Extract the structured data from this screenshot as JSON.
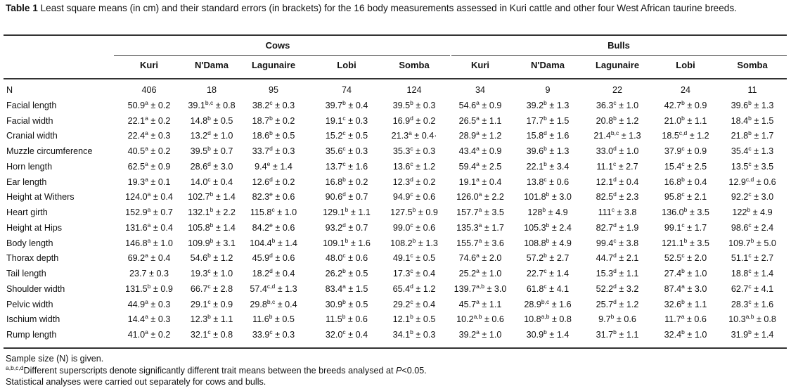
{
  "caption": {
    "label": "Table 1",
    "text": " Least square means (in cm) and their standard errors (in brackets) for the 16 body measurements assessed in Kuri cattle and other four West African taurine breeds."
  },
  "groups": [
    "Cows",
    "Bulls"
  ],
  "breeds": [
    "Kuri",
    "N'Dama",
    "Lagunaire",
    "Lobi",
    "Somba",
    "Kuri",
    "N'Dama",
    "Lagunaire",
    "Lobi",
    "Somba"
  ],
  "rows": [
    {
      "label": "N",
      "cells": [
        [
          "406",
          ""
        ],
        [
          "18",
          ""
        ],
        [
          "95",
          ""
        ],
        [
          "74",
          ""
        ],
        [
          "124",
          ""
        ],
        [
          "34",
          ""
        ],
        [
          "9",
          ""
        ],
        [
          "22",
          ""
        ],
        [
          "24",
          ""
        ],
        [
          "11",
          ""
        ]
      ]
    },
    {
      "label": "Facial length",
      "cells": [
        [
          "50.9",
          "a",
          " ± 0.2"
        ],
        [
          "39.1",
          "b,c",
          " ± 0.8"
        ],
        [
          "38.2",
          "c",
          " ± 0.3"
        ],
        [
          "39.7",
          "b",
          " ± 0.4"
        ],
        [
          "39.5",
          "b",
          " ± 0.3"
        ],
        [
          "54.6",
          "a",
          " ± 0.9"
        ],
        [
          "39.2",
          "b",
          " ± 1.3"
        ],
        [
          "36.3",
          "c",
          " ± 1.0"
        ],
        [
          "42.7",
          "b",
          " ± 0.9"
        ],
        [
          "39.6",
          "b",
          " ± 1.3"
        ]
      ]
    },
    {
      "label": "Facial width",
      "cells": [
        [
          "22.1",
          "a",
          " ± 0.2"
        ],
        [
          "14.8",
          "b",
          " ± 0.5"
        ],
        [
          "18.7",
          "b",
          " ± 0.2"
        ],
        [
          "19.1",
          "c",
          " ± 0.3"
        ],
        [
          "16.9",
          "d",
          " ± 0.2"
        ],
        [
          "26.5",
          "a",
          " ± 1.1"
        ],
        [
          "17.7",
          "b",
          " ± 1.5"
        ],
        [
          "20.8",
          "b",
          " ± 1.2"
        ],
        [
          "21.0",
          "b",
          " ± 1.1"
        ],
        [
          "18.4",
          "b",
          " ± 1.5"
        ]
      ]
    },
    {
      "label": "Cranial width",
      "cells": [
        [
          "22.4",
          "a",
          " ± 0.3"
        ],
        [
          "13.2",
          "d",
          " ± 1.0"
        ],
        [
          "18.6",
          "b",
          " ± 0.5"
        ],
        [
          "15.2",
          "c",
          " ± 0.5"
        ],
        [
          "21.3",
          "a",
          " ± 0.4·"
        ],
        [
          "28.9",
          "a",
          " ± 1.2"
        ],
        [
          "15.8",
          "d",
          " ± 1.6"
        ],
        [
          "21.4",
          "b,c",
          " ± 1.3"
        ],
        [
          "18.5",
          "c,d",
          " ± 1.2"
        ],
        [
          "21.8",
          "b",
          " ± 1.7"
        ]
      ]
    },
    {
      "label": "Muzzle circumference",
      "cells": [
        [
          "40.5",
          "a",
          " ± 0.2"
        ],
        [
          "39.5",
          "b",
          " ± 0.7"
        ],
        [
          "33.7",
          "d",
          " ± 0.3"
        ],
        [
          "35.6",
          "c",
          " ± 0.3"
        ],
        [
          "35.3",
          "c",
          " ± 0.3"
        ],
        [
          "43.4",
          "a",
          " ± 0.9"
        ],
        [
          "39.6",
          "b",
          " ± 1.3"
        ],
        [
          "33.0",
          "d",
          " ± 1.0"
        ],
        [
          "37.9",
          "c",
          " ± 0.9"
        ],
        [
          "35.4",
          "c",
          " ± 1.3"
        ]
      ]
    },
    {
      "label": "Horn length",
      "cells": [
        [
          "62.5",
          "a",
          " ± 0.9"
        ],
        [
          "28.6",
          "d",
          " ± 3.0"
        ],
        [
          "9.4",
          "e",
          " ± 1.4"
        ],
        [
          "13.7",
          "c",
          " ± 1.6"
        ],
        [
          "13.6",
          "c",
          " ± 1.2"
        ],
        [
          "59.4",
          "a",
          " ± 2.5"
        ],
        [
          "22.1",
          "b",
          " ± 3.4"
        ],
        [
          "11.1",
          "c",
          " ± 2.7"
        ],
        [
          "15.4",
          "c",
          " ± 2.5"
        ],
        [
          "13.5",
          "c",
          " ± 3.5"
        ]
      ]
    },
    {
      "label": "Ear length",
      "cells": [
        [
          "19.3",
          "a",
          " ± 0.1"
        ],
        [
          "14.0",
          "c",
          " ± 0.4"
        ],
        [
          "12.6",
          "d",
          " ± 0.2"
        ],
        [
          "16.8",
          "b",
          " ± 0.2"
        ],
        [
          "12.3",
          "d",
          " ± 0.2"
        ],
        [
          "19.1",
          "a",
          " ± 0.4"
        ],
        [
          "13.8",
          "c",
          " ± 0.6"
        ],
        [
          "12.1",
          "d",
          " ± 0.4"
        ],
        [
          "16.8",
          "b",
          " ± 0.4"
        ],
        [
          "12.9",
          "c,d",
          " ± 0.6"
        ]
      ]
    },
    {
      "label": "Height at Withers",
      "cells": [
        [
          "124.0",
          "a",
          " ± 0.4"
        ],
        [
          "102.7",
          "b",
          " ± 1.4"
        ],
        [
          "82.3",
          "e",
          " ± 0.6"
        ],
        [
          "90.6",
          "d",
          " ± 0.7"
        ],
        [
          "94.9",
          "c",
          " ± 0.6"
        ],
        [
          "126.0",
          "a",
          " ± 2.2"
        ],
        [
          "101.8",
          "b",
          " ± 3.0"
        ],
        [
          "82.5",
          "d",
          " ± 2.3"
        ],
        [
          "95.8",
          "c",
          " ± 2.1"
        ],
        [
          "92.2",
          "c",
          " ± 3.0"
        ]
      ]
    },
    {
      "label": "Heart girth",
      "cells": [
        [
          "152.9",
          "a",
          " ± 0.7"
        ],
        [
          "132.1",
          "b",
          " ± 2.2"
        ],
        [
          "115.8",
          "c",
          " ± 1.0"
        ],
        [
          "129.1",
          "b",
          " ± 1.1"
        ],
        [
          "127.5",
          "b",
          " ± 0.9"
        ],
        [
          "157.7",
          "a",
          " ± 3.5"
        ],
        [
          "128",
          "b",
          " ± 4.9"
        ],
        [
          "111",
          "c",
          " ± 3.8"
        ],
        [
          "136.0",
          "b",
          " ± 3.5"
        ],
        [
          "122",
          "b",
          " ± 4.9"
        ]
      ]
    },
    {
      "label": "Height at Hips",
      "cells": [
        [
          "131.6",
          "a",
          " ± 0.4"
        ],
        [
          "105.8",
          "b",
          " ± 1.4"
        ],
        [
          "84.2",
          "e",
          " ± 0.6"
        ],
        [
          "93.2",
          "d",
          " ± 0.7"
        ],
        [
          "99.0",
          "c",
          " ± 0.6"
        ],
        [
          "135.3",
          "a",
          " ± 1.7"
        ],
        [
          "105.3",
          "b",
          " ± 2.4"
        ],
        [
          "82.7",
          "d",
          " ± 1.9"
        ],
        [
          "99.1",
          "c",
          " ± 1.7"
        ],
        [
          "98.6",
          "c",
          " ± 2.4"
        ]
      ]
    },
    {
      "label": "Body length",
      "cells": [
        [
          "146.8",
          "a",
          " ± 1.0"
        ],
        [
          "109.9",
          "b",
          " ± 3.1"
        ],
        [
          "104.4",
          "b",
          " ± 1.4"
        ],
        [
          "109.1",
          "b",
          " ± 1.6"
        ],
        [
          "108.2",
          "b",
          " ± 1.3"
        ],
        [
          "155.7",
          "a",
          " ± 3.6"
        ],
        [
          "108.8",
          "b",
          " ± 4.9"
        ],
        [
          "99.4",
          "c",
          " ± 3.8"
        ],
        [
          "121.1",
          "b",
          " ± 3.5"
        ],
        [
          "109.7",
          "b",
          " ± 5.0"
        ]
      ]
    },
    {
      "label": "Thorax depth",
      "cells": [
        [
          "69.2",
          "a",
          " ± 0.4"
        ],
        [
          "54.6",
          "b",
          " ± 1.2"
        ],
        [
          "45.9",
          "d",
          " ± 0.6"
        ],
        [
          "48.0",
          "c",
          " ± 0.6"
        ],
        [
          "49.1",
          "c",
          " ± 0.5"
        ],
        [
          "74.6",
          "a",
          " ± 2.0"
        ],
        [
          "57.2",
          "b",
          " ± 2.7"
        ],
        [
          "44.7",
          "d",
          " ± 2.1"
        ],
        [
          "52.5",
          "c",
          " ± 2.0"
        ],
        [
          "51.1",
          "c",
          " ± 2.7"
        ]
      ]
    },
    {
      "label": "Tail length",
      "cells": [
        [
          "23.7",
          "",
          " ± 0.3"
        ],
        [
          "19.3",
          "c",
          " ± 1.0"
        ],
        [
          "18.2",
          "d",
          " ± 0.4"
        ],
        [
          "26.2",
          "b",
          " ± 0.5"
        ],
        [
          "17.3",
          "c",
          " ± 0.4"
        ],
        [
          "25.2",
          "a",
          " ± 1.0"
        ],
        [
          "22.7",
          "c",
          " ± 1.4"
        ],
        [
          "15.3",
          "d",
          " ± 1.1"
        ],
        [
          "27.4",
          "b",
          " ± 1.0"
        ],
        [
          "18.8",
          "c",
          " ± 1.4"
        ]
      ]
    },
    {
      "label": "Shoulder width",
      "cells": [
        [
          "131.5",
          "b",
          " ± 0.9"
        ],
        [
          "66.7",
          "c",
          " ± 2.8"
        ],
        [
          "57.4",
          "c,d",
          " ± 1.3"
        ],
        [
          "83.4",
          "a",
          " ± 1.5"
        ],
        [
          "65.4",
          "d",
          " ± 1.2"
        ],
        [
          "139.7",
          "a,b",
          " ± 3.0"
        ],
        [
          "61.8",
          "c",
          " ± 4.1"
        ],
        [
          "52.2",
          "d",
          " ± 3.2"
        ],
        [
          "87.4",
          "a",
          " ± 3.0"
        ],
        [
          "62.7",
          "c",
          " ± 4.1"
        ]
      ]
    },
    {
      "label": "Pelvic width",
      "cells": [
        [
          "44.9",
          "a",
          " ± 0.3"
        ],
        [
          "29.1",
          "c",
          " ± 0.9"
        ],
        [
          "29.8",
          "b,c",
          " ± 0.4"
        ],
        [
          "30.9",
          "b",
          " ± 0.5"
        ],
        [
          "29.2",
          "c",
          " ± 0.4"
        ],
        [
          "45.7",
          "a",
          " ± 1.1"
        ],
        [
          "28.9",
          "b,c",
          " ± 1.6"
        ],
        [
          "25.7",
          "d",
          " ± 1.2"
        ],
        [
          "32.6",
          "b",
          " ± 1.1"
        ],
        [
          "28.3",
          "c",
          " ± 1.6"
        ]
      ]
    },
    {
      "label": "Ischium width",
      "cells": [
        [
          "14.4",
          "a",
          " ± 0.3"
        ],
        [
          "12.3",
          "b",
          " ± 1.1"
        ],
        [
          "11.6",
          "b",
          " ± 0.5"
        ],
        [
          "11.5",
          "b",
          " ± 0.6"
        ],
        [
          "12.1",
          "b",
          " ± 0.5"
        ],
        [
          "10.2",
          "a,b",
          " ± 0.6"
        ],
        [
          "10.8",
          "a,b",
          " ± 0.8"
        ],
        [
          "9.7",
          "b",
          " ± 0.6"
        ],
        [
          "11.7",
          "a",
          " ± 0.6"
        ],
        [
          "10.3",
          "a,b",
          " ± 0.8"
        ]
      ]
    },
    {
      "label": "Rump length",
      "cells": [
        [
          "41.0",
          "a",
          " ± 0.2"
        ],
        [
          "32.1",
          "c",
          " ± 0.8"
        ],
        [
          "33.9",
          "c",
          " ± 0.3"
        ],
        [
          "32.0",
          "c",
          " ± 0.4"
        ],
        [
          "34.1",
          "b",
          " ± 0.3"
        ],
        [
          "39.2",
          "a",
          " ± 1.0"
        ],
        [
          "30.9",
          "b",
          " ± 1.4"
        ],
        [
          "31.7",
          "b",
          " ± 1.1"
        ],
        [
          "32.4",
          "b",
          " ± 1.0"
        ],
        [
          "31.9",
          "b",
          " ± 1.4"
        ]
      ]
    }
  ],
  "notes": {
    "line1": "Sample size (N) is given.",
    "line2_sup": "a,b,c,d",
    "line2_text": "Different superscripts denote significantly different trait means between the breeds analysed at ",
    "line2_p": "P",
    "line2_end": "<0.05.",
    "line3": "Statistical analyses were carried out separately for cows and bulls."
  }
}
